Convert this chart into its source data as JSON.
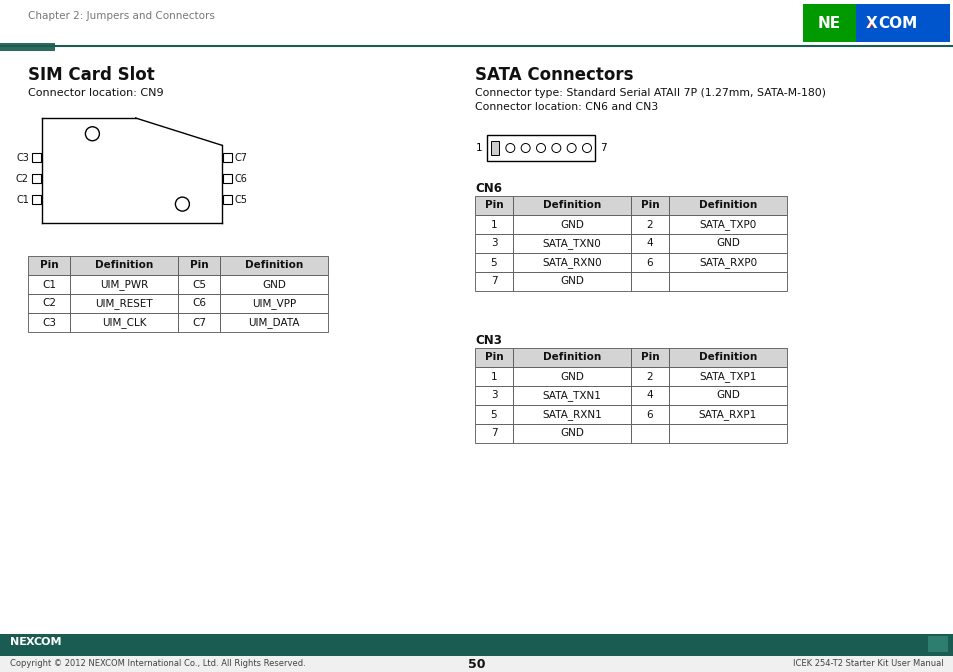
{
  "page_title": "Chapter 2: Jumpers and Connectors",
  "page_num": "50",
  "footer_left": "Copyright © 2012 NEXCOM International Co., Ltd. All Rights Reserved.",
  "footer_right": "ICEK 254-T2 Starter Kit User Manual",
  "header_line_color": "#1a5c52",
  "header_rect_color": "#2d6b5e",
  "bg_color": "#ffffff",
  "sim_title": "SIM Card Slot",
  "sim_subtitle": "Connector location: CN9",
  "sata_title": "SATA Connectors",
  "sata_subtitle1": "Connector type: Standard Serial ATAII 7P (1.27mm, SATA-M-180)",
  "sata_subtitle2": "Connector location: CN6 and CN3",
  "sim_table_headers": [
    "Pin",
    "Definition",
    "Pin",
    "Definition"
  ],
  "sim_table_rows": [
    [
      "C1",
      "UIM_PWR",
      "C5",
      "GND"
    ],
    [
      "C2",
      "UIM_RESET",
      "C6",
      "UIM_VPP"
    ],
    [
      "C3",
      "UIM_CLK",
      "C7",
      "UIM_DATA"
    ]
  ],
  "cn6_label": "CN6",
  "cn6_table_headers": [
    "Pin",
    "Definition",
    "Pin",
    "Definition"
  ],
  "cn6_table_rows": [
    [
      "1",
      "GND",
      "2",
      "SATA_TXP0"
    ],
    [
      "3",
      "SATA_TXN0",
      "4",
      "GND"
    ],
    [
      "5",
      "SATA_RXN0",
      "6",
      "SATA_RXP0"
    ],
    [
      "7",
      "GND",
      "",
      ""
    ]
  ],
  "cn3_label": "CN3",
  "cn3_table_headers": [
    "Pin",
    "Definition",
    "Pin",
    "Definition"
  ],
  "cn3_table_rows": [
    [
      "1",
      "GND",
      "2",
      "SATA_TXP1"
    ],
    [
      "3",
      "SATA_TXN1",
      "4",
      "GND"
    ],
    [
      "5",
      "SATA_RXN1",
      "6",
      "SATA_RXP1"
    ],
    [
      "7",
      "GND",
      "",
      ""
    ]
  ],
  "table_header_bg": "#d4d4d4",
  "table_border_color": "#555555",
  "text_color": "#111111",
  "gray_text": "#777777",
  "footer_bg": "#1a5c52",
  "footer_bar_color": "#2e7d6e"
}
